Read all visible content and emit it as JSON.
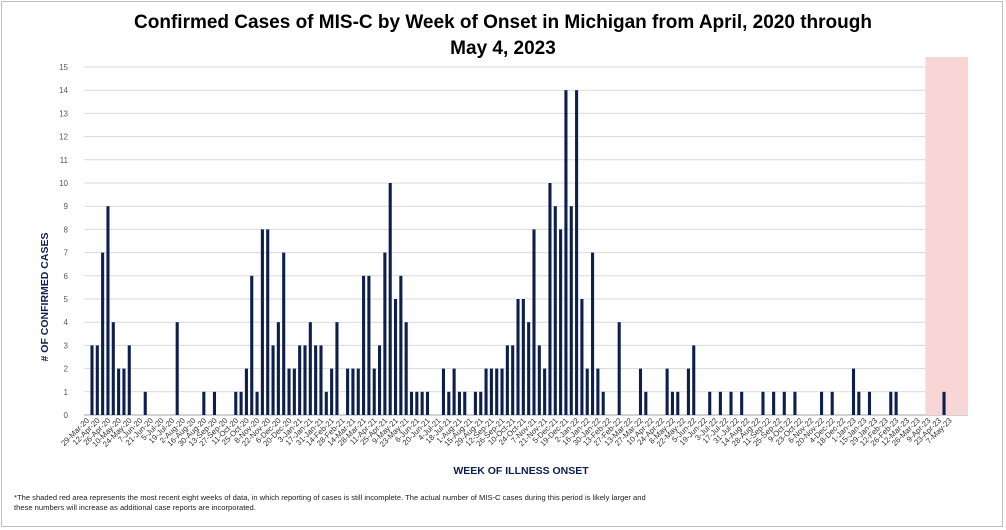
{
  "chart_data": {
    "type": "bar",
    "title_line1": "Confirmed  Cases  of MIS-C by Week of Onset in Michigan from April, 2020 through",
    "title_line2": "May 4, 2023",
    "xlabel": "WEEK OF ILLNESS ONSET",
    "ylabel": "# OF CONFIRMED CASES",
    "ylim": [
      0,
      15
    ],
    "yticks": [
      0,
      1,
      2,
      3,
      4,
      5,
      6,
      7,
      8,
      9,
      10,
      11,
      12,
      13,
      14,
      15
    ],
    "grid": true,
    "bar_color": "#0d1f4f",
    "shade_color": "#f9d6d6",
    "shaded_last_weeks": 8,
    "tick_labels": [
      "29-Mar-20",
      "12-Apr-20",
      "26-Apr-20",
      "10-May-20",
      "24-May-20",
      "7-Jun-20",
      "21-Jun-20",
      "5-Jul-20",
      "19-Jul-20",
      "2-Aug-20",
      "16-Aug-20",
      "30-Aug-20",
      "13-Sep-20",
      "27-Sep-20",
      "11-Oct-20",
      "25-Oct-20",
      "8-Nov-20",
      "22-Nov-20",
      "6-Dec-20",
      "20-Dec-20",
      "3-Jan-21",
      "17-Jan-21",
      "31-Jan-21",
      "14-Feb-21",
      "28-Feb-21",
      "14-Mar-21",
      "28-Mar-21",
      "11-Apr-21",
      "25-Apr-21",
      "9-May-21",
      "23-May-21",
      "6-Jun-21",
      "20-Jun-21",
      "4-Jul-21",
      "18-Jul-21",
      "1-Aug-21",
      "15-Aug-21",
      "29-Aug-21",
      "12-Sep-21",
      "26-Sep-21",
      "10-Oct-21",
      "24-Oct-21",
      "7-Nov-21",
      "21-Nov-21",
      "5-Dec-21",
      "19-Dec-21",
      "2-Jan-22",
      "16-Jan-22",
      "30-Jan-22",
      "13-Feb-22",
      "27-Feb-22",
      "13-Mar-22",
      "27-Mar-22",
      "10-Apr-22",
      "24-Apr-22",
      "8-May-22",
      "22-May-22",
      "5-Jun-22",
      "19-Jun-22",
      "3-Jul-22",
      "17-Jul-22",
      "31-Jul-22",
      "14-Aug-22",
      "28-Aug-22",
      "11-Sep-22",
      "25-Sep-22",
      "9-Oct-22",
      "23-Oct-22",
      "6-Nov-22",
      "20-Nov-22",
      "4-Dec-22",
      "18-Dec-22",
      "1-Jan-23",
      "15-Jan-23",
      "29-Jan-23",
      "12-Feb-23",
      "26-Feb-23",
      "12-Mar-23",
      "26-Mar-23",
      "9-Apr-23",
      "23-Apr-23",
      "7-May-23"
    ],
    "values": [
      0,
      3,
      3,
      7,
      9,
      4,
      2,
      2,
      3,
      0,
      0,
      1,
      0,
      0,
      0,
      0,
      0,
      4,
      0,
      0,
      0,
      0,
      1,
      0,
      1,
      0,
      0,
      0,
      1,
      1,
      2,
      6,
      1,
      8,
      8,
      3,
      4,
      7,
      2,
      2,
      3,
      3,
      4,
      3,
      3,
      1,
      2,
      4,
      0,
      2,
      2,
      2,
      6,
      6,
      2,
      3,
      7,
      10,
      5,
      6,
      4,
      1,
      1,
      1,
      1,
      0,
      0,
      2,
      1,
      2,
      1,
      1,
      0,
      1,
      1,
      2,
      2,
      2,
      2,
      3,
      3,
      5,
      5,
      4,
      8,
      3,
      2,
      10,
      9,
      8,
      14,
      9,
      14,
      5,
      2,
      7,
      2,
      1,
      0,
      0,
      4,
      0,
      0,
      0,
      2,
      1,
      0,
      0,
      0,
      2,
      1,
      1,
      0,
      2,
      3,
      0,
      0,
      1,
      0,
      1,
      0,
      1,
      0,
      1,
      0,
      0,
      0,
      1,
      0,
      1,
      0,
      1,
      0,
      1,
      0,
      0,
      0,
      0,
      1,
      0,
      1,
      0,
      0,
      0,
      2,
      1,
      0,
      1,
      0,
      0,
      0,
      1,
      1,
      0,
      0,
      0,
      0,
      0,
      0,
      0,
      0,
      1,
      0,
      0,
      0,
      0
    ]
  },
  "footnote": "*The  shaded red area represents the most recent eight weeks of data, in which reporting of cases is still incomplete. The  actual number of MIS-C cases during this period is likely larger and these numbers will increase as additional case reports are incorporated."
}
